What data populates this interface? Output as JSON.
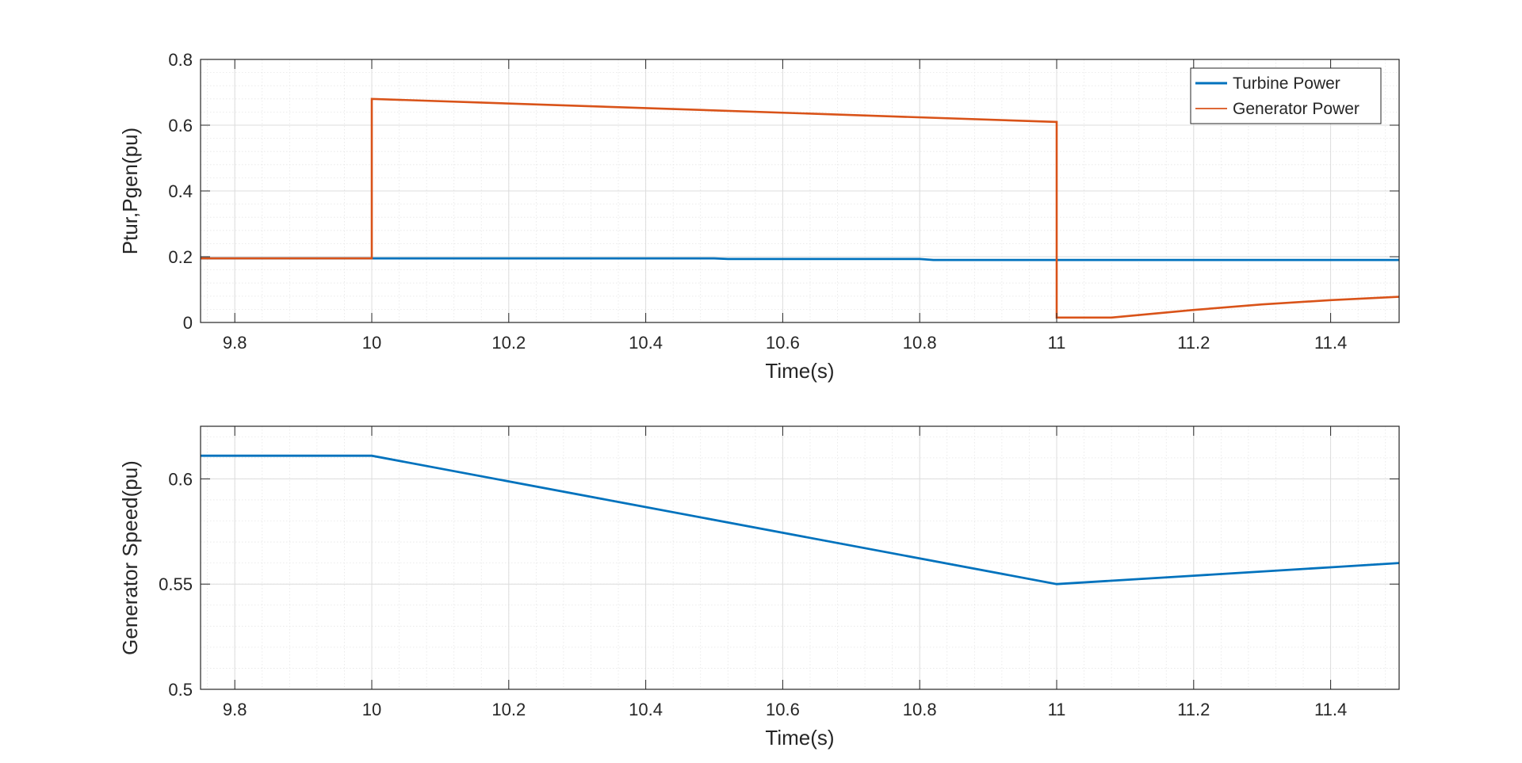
{
  "chart_data": [
    {
      "type": "line",
      "title": "",
      "xlabel": "Time(s)",
      "ylabel": "Ptur,Pgen(pu)",
      "xlim": [
        9.75,
        11.5
      ],
      "ylim": [
        0,
        0.8
      ],
      "xticks": [
        9.8,
        10,
        10.2,
        10.4,
        10.6,
        10.8,
        11,
        11.2,
        11.4
      ],
      "xtick_labels": [
        "9.8",
        "10",
        "10.2",
        "10.4",
        "10.6",
        "10.8",
        "11",
        "11.2",
        "11.4"
      ],
      "yticks": [
        0,
        0.2,
        0.4,
        0.6,
        0.8
      ],
      "ytick_labels": [
        "0",
        "0.2",
        "0.4",
        "0.6",
        "0.8"
      ],
      "grid": true,
      "minor_grid": true,
      "legend_position": "top-right",
      "series": [
        {
          "name": "Turbine Power",
          "color": "#0072BD",
          "x": [
            9.75,
            10.0,
            10.5,
            10.52,
            10.8,
            10.82,
            11.0,
            11.5
          ],
          "y": [
            0.195,
            0.195,
            0.195,
            0.193,
            0.193,
            0.19,
            0.19,
            0.19
          ]
        },
        {
          "name": "Generator Power",
          "color": "#D95319",
          "x": [
            9.75,
            10.0,
            10.0,
            11.0,
            11.0,
            11.08,
            11.2,
            11.3,
            11.4,
            11.5
          ],
          "y": [
            0.195,
            0.195,
            0.68,
            0.61,
            0.015,
            0.015,
            0.038,
            0.055,
            0.068,
            0.078
          ]
        }
      ]
    },
    {
      "type": "line",
      "title": "",
      "xlabel": "Time(s)",
      "ylabel": "Generator Speed(pu)",
      "xlim": [
        9.75,
        11.5
      ],
      "ylim": [
        0.5,
        0.625
      ],
      "xticks": [
        9.8,
        10,
        10.2,
        10.4,
        10.6,
        10.8,
        11,
        11.2,
        11.4
      ],
      "xtick_labels": [
        "9.8",
        "10",
        "10.2",
        "10.4",
        "10.6",
        "10.8",
        "11",
        "11.2",
        "11.4"
      ],
      "yticks": [
        0.5,
        0.55,
        0.6
      ],
      "ytick_labels": [
        "0.5",
        "0.55",
        "0.6"
      ],
      "grid": true,
      "minor_grid": true,
      "series": [
        {
          "color": "#0072BD",
          "x": [
            9.75,
            10.0,
            11.0,
            11.2,
            11.4,
            11.5
          ],
          "y": [
            0.611,
            0.611,
            0.55,
            0.554,
            0.558,
            0.56
          ]
        }
      ]
    }
  ]
}
